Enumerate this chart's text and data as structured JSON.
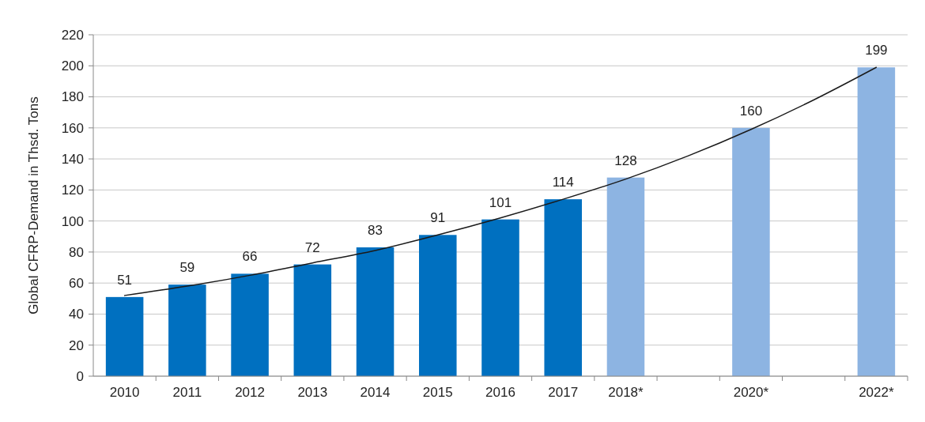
{
  "chart_data": {
    "type": "bar",
    "ylabel": "Global CFRP-Demand in Thsd. Tons",
    "categories": [
      "2010",
      "2011",
      "2012",
      "2013",
      "2014",
      "2015",
      "2016",
      "2017",
      "2018*",
      null,
      "2020*",
      null,
      "2022*"
    ],
    "series": [
      {
        "values": [
          51,
          59,
          66,
          72,
          83,
          91,
          101,
          114,
          128,
          null,
          160,
          null,
          199
        ],
        "value_labels": [
          "51",
          "59",
          "66",
          "72",
          "83",
          "91",
          "101",
          "114",
          "128",
          null,
          "160",
          null,
          "199"
        ],
        "colors": [
          "#0070c0",
          "#0070c0",
          "#0070c0",
          "#0070c0",
          "#0070c0",
          "#0070c0",
          "#0070c0",
          "#0070c0",
          "#8db4e2",
          null,
          "#8db4e2",
          null,
          "#8db4e2"
        ]
      },
      {
        "type": "line",
        "color": "#1a1a1a",
        "values": [
          52,
          58,
          65,
          73,
          81,
          91,
          102,
          114,
          127,
          142,
          159,
          178,
          199
        ]
      }
    ],
    "ylim": [
      0,
      220
    ],
    "yticks": [
      0,
      20,
      40,
      60,
      80,
      100,
      120,
      140,
      160,
      180,
      200,
      220
    ],
    "grid": "y",
    "marker": "none",
    "line_style": "solid"
  }
}
